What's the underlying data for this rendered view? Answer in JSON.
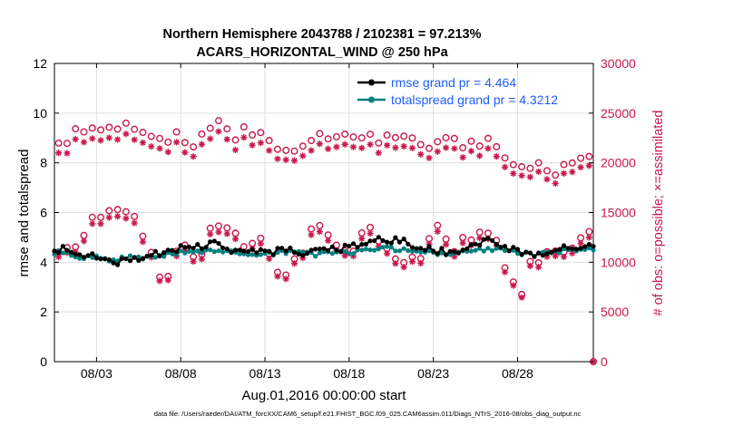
{
  "chart_data": {
    "type": "line",
    "title": "Northern Hemisphere 2043788 / 2102381 = 97.213%",
    "subtitle": "ACARS_HORIZONTAL_WIND @ 250 hPa",
    "xlabel": "Aug.01,2016 00:00:00 start",
    "ylabel": "rmse and totalspread",
    "y2label": "# of obs: o=possible; ×=assimilated",
    "footnote": "data file: /Users/raeder/DAI/ATM_forcXX/CAM6_setup/f.e21.FHIST_BGC.f09_025.CAM6assim.011/Diags_NTrS_2016-08/obs_diag_output.nc",
    "x_range_days": [
      0.5,
      32.5
    ],
    "ylim": [
      0,
      12
    ],
    "y2lim": [
      0,
      30000
    ],
    "x_ticks": [
      {
        "label": "08/03",
        "day": 3
      },
      {
        "label": "08/08",
        "day": 8
      },
      {
        "label": "08/13",
        "day": 13
      },
      {
        "label": "08/18",
        "day": 18
      },
      {
        "label": "08/23",
        "day": 23
      },
      {
        "label": "08/28",
        "day": 28
      }
    ],
    "y_ticks": [
      "0",
      "2",
      "4",
      "6",
      "8",
      "10",
      "12"
    ],
    "y2_ticks": [
      "0",
      "5000",
      "10000",
      "15000",
      "20000",
      "25000",
      "30000"
    ],
    "legend": [
      {
        "label": "rmse grand pr = 4.464",
        "color": "#000000"
      },
      {
        "label": "totalspread grand pr = 4.3212",
        "color": "#008080"
      }
    ],
    "colors": {
      "rmse": "#000000",
      "totalspread": "#008080",
      "obs": "#c8184b",
      "legend_text": "#1f5fff",
      "grid": "#e0e0e0"
    },
    "series_daily": [
      {
        "name": "rmse",
        "day": [
          0.5,
          1,
          2,
          3,
          4,
          5,
          6,
          7,
          8,
          9,
          10,
          11,
          12,
          13,
          14,
          15,
          16,
          17,
          18,
          19,
          20,
          21,
          22,
          23,
          24,
          25,
          26,
          27,
          28,
          29,
          30,
          31,
          32,
          32.5
        ],
        "values": [
          4.4,
          4.6,
          4.3,
          4.2,
          4.0,
          4.1,
          4.3,
          4.4,
          4.6,
          4.6,
          4.8,
          4.5,
          4.4,
          4.4,
          4.5,
          4.4,
          4.4,
          4.5,
          4.6,
          4.8,
          4.9,
          4.9,
          4.6,
          4.5,
          4.4,
          4.6,
          4.9,
          4.7,
          4.4,
          4.3,
          4.5,
          4.6,
          4.6,
          4.6
        ]
      },
      {
        "name": "totalspread",
        "day": [
          0.5,
          1,
          2,
          3,
          4,
          5,
          6,
          7,
          8,
          9,
          10,
          11,
          12,
          13,
          14,
          15,
          16,
          17,
          18,
          19,
          20,
          21,
          22,
          23,
          24,
          25,
          26,
          27,
          28,
          29,
          30,
          31,
          32,
          32.5
        ],
        "values": [
          4.4,
          4.4,
          4.2,
          4.2,
          4.1,
          4.2,
          4.2,
          4.3,
          4.4,
          4.4,
          4.5,
          4.4,
          4.3,
          4.3,
          4.4,
          4.4,
          4.3,
          4.4,
          4.4,
          4.5,
          4.6,
          4.5,
          4.4,
          4.4,
          4.3,
          4.4,
          4.5,
          4.5,
          4.4,
          4.3,
          4.4,
          4.5,
          4.5,
          4.5
        ]
      }
    ],
    "obs_possible_daily": {
      "day": [
        0.5,
        1,
        2,
        3,
        4,
        5,
        6,
        7,
        8,
        9,
        10,
        11,
        12,
        13,
        14,
        15,
        16,
        17,
        18,
        19,
        20,
        21,
        22,
        23,
        24,
        25,
        26,
        27,
        28,
        29,
        30,
        31,
        32,
        32.5
      ],
      "high": [
        21500,
        22500,
        23000,
        24000,
        23500,
        23500,
        22000,
        22500,
        22500,
        22000,
        24000,
        23000,
        23000,
        23000,
        21500,
        22000,
        22000,
        23000,
        22500,
        22500,
        22000,
        23000,
        22500,
        22000,
        22000,
        22000,
        22000,
        21500,
        19000,
        20000,
        19000,
        19500,
        20500,
        21000
      ],
      "low": [
        9500,
        12000,
        11500,
        15000,
        15500,
        15000,
        12000,
        8000,
        11500,
        10500,
        13500,
        12500,
        12000,
        12000,
        8000,
        10500,
        14500,
        12000,
        11000,
        14500,
        12000,
        10500,
        10000,
        13500,
        11500,
        12500,
        13500,
        11000,
        6500,
        10500,
        11500,
        11000,
        13000,
        13000
      ],
      "x_at_end_count": 0
    }
  }
}
